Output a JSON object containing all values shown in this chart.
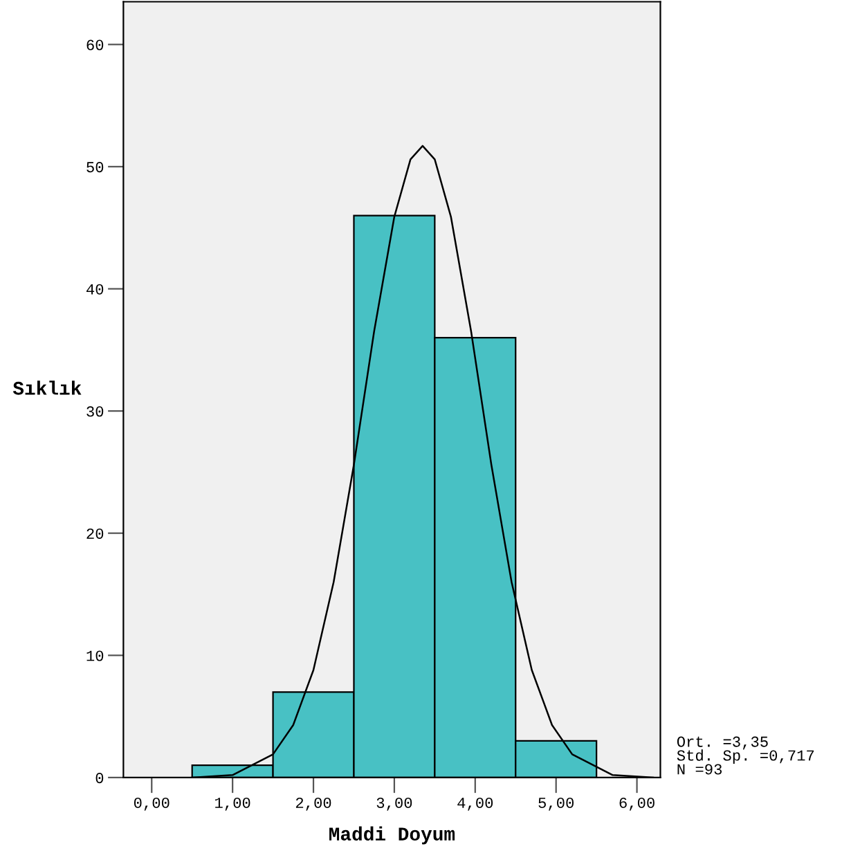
{
  "chart_data": {
    "type": "histogram",
    "xlabel": "Maddi Doyum",
    "ylabel": "Sıklık",
    "bins": [
      0.5,
      1.5,
      2.5,
      3.5,
      4.5,
      5.5
    ],
    "values": [
      1,
      7,
      46,
      36,
      3
    ],
    "color": "#48c1c4",
    "series": [
      {
        "type": "line",
        "color": "#000000",
        "x": [
          0.5,
          1.0,
          1.5,
          1.75,
          2.0,
          2.25,
          2.5,
          2.75,
          3.0,
          3.2,
          3.35,
          3.5,
          3.7,
          3.95,
          4.2,
          4.45,
          4.7,
          4.95,
          5.2,
          5.7,
          6.2
        ],
        "values": [
          0.0,
          0.2,
          1.9,
          4.3,
          8.8,
          16.0,
          25.6,
          36.5,
          45.9,
          50.6,
          51.7,
          50.6,
          45.9,
          36.5,
          25.6,
          16.0,
          8.8,
          4.3,
          1.9,
          0.2,
          0.0
        ]
      }
    ],
    "xlim": [
      -0.35,
      6.29
    ],
    "ylim": [
      0,
      63.5
    ],
    "xticks": [
      {
        "value": 0,
        "label": "0,00"
      },
      {
        "value": 1,
        "label": "1,00"
      },
      {
        "value": 2,
        "label": "2,00"
      },
      {
        "value": 3,
        "label": "3,00"
      },
      {
        "value": 4,
        "label": "4,00"
      },
      {
        "value": 5,
        "label": "5,00"
      },
      {
        "value": 6,
        "label": "6,00"
      }
    ],
    "yticks": [
      0,
      10,
      20,
      30,
      40,
      50,
      60
    ],
    "grid": false,
    "annotations": [
      "Ort. =3,35\nStd. Sp. =0,717\nN =93"
    ]
  }
}
